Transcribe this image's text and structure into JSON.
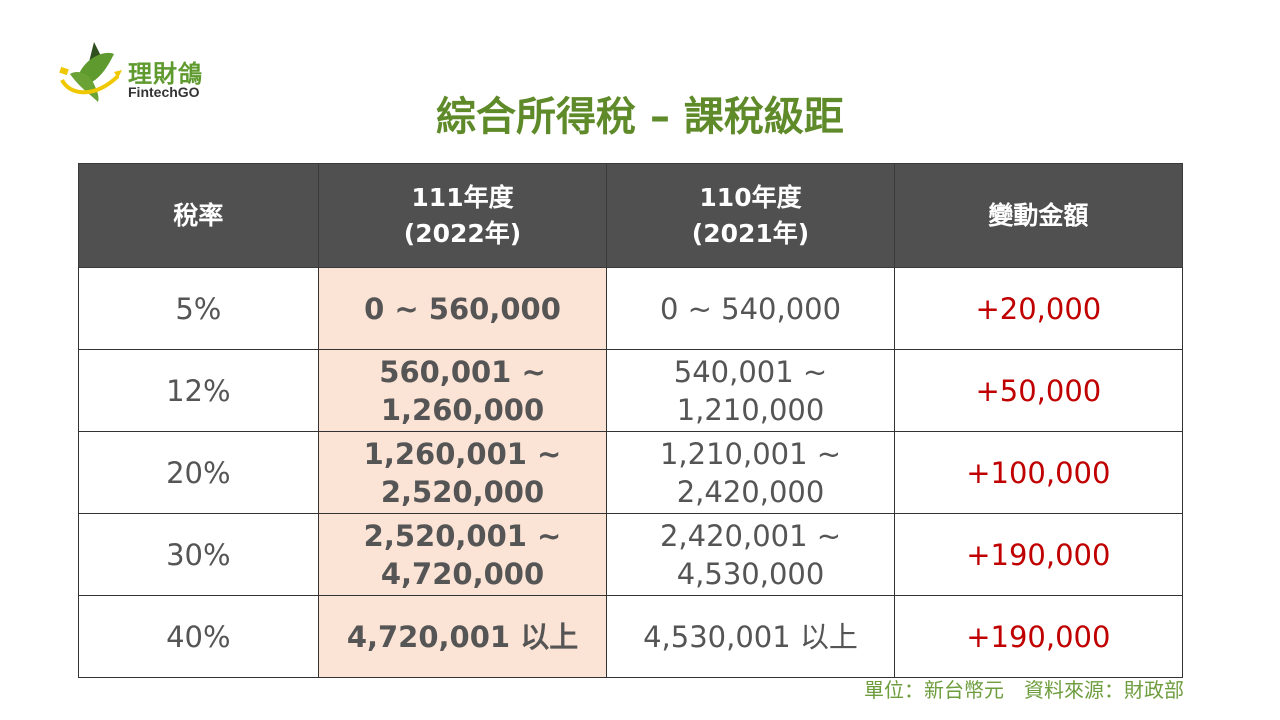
{
  "logo": {
    "name_cn": "理財鴿",
    "name_en": "FintechGO"
  },
  "title": "綜合所得稅 – 課稅級距",
  "table": {
    "headers": [
      [
        "稅率",
        ""
      ],
      [
        "111年度",
        "(2022年)"
      ],
      [
        "110年度",
        "(2021年)"
      ],
      [
        "變動金額",
        ""
      ]
    ],
    "rows": [
      {
        "rate": "5%",
        "y2022": [
          "0 ~ 560,000"
        ],
        "y2021": [
          "0 ~ 540,000"
        ],
        "change": "+20,000"
      },
      {
        "rate": "12%",
        "y2022": [
          "560,001 ~",
          "1,260,000"
        ],
        "y2021": [
          "540,001 ~",
          "1,210,000"
        ],
        "change": "+50,000"
      },
      {
        "rate": "20%",
        "y2022": [
          "1,260,001 ~",
          "2,520,000"
        ],
        "y2021": [
          "1,210,001 ~",
          "2,420,000"
        ],
        "change": "+100,000"
      },
      {
        "rate": "30%",
        "y2022": [
          "2,520,001 ~",
          "4,720,000"
        ],
        "y2021": [
          "2,420,001 ~",
          "4,530,000"
        ],
        "change": "+190,000"
      },
      {
        "rate": "40%",
        "y2022": [
          "4,720,001 以上"
        ],
        "y2021": [
          "4,530,001 以上"
        ],
        "change": "+190,000"
      }
    ]
  },
  "footer": "單位：新台幣元　資料來源：財政部",
  "colors": {
    "title": "#5f8a2a",
    "header_bg": "#505050",
    "highlight": "#fbe3d5",
    "change": "#c00000"
  }
}
